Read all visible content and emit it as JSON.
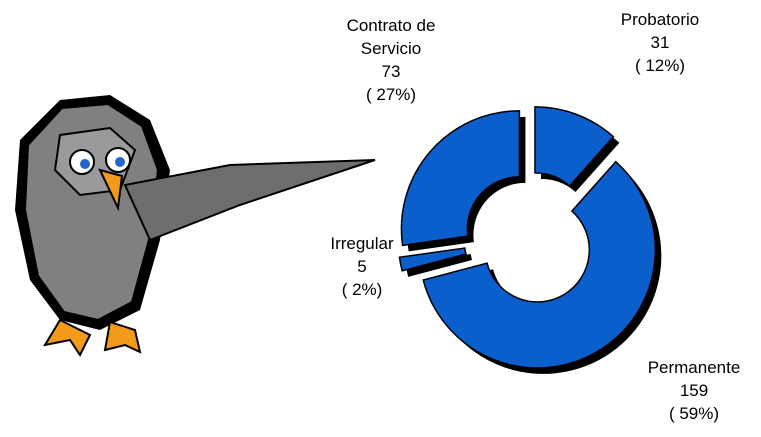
{
  "chart_data": {
    "type": "doughnut",
    "categories": [
      "Probatorio",
      "Permanente",
      "Irregular",
      "Contrato de Servicio"
    ],
    "values": [
      31,
      159,
      5,
      73
    ],
    "percents": [
      12,
      59,
      2,
      27
    ],
    "percent_labels": [
      "( 12%)",
      "( 59%)",
      "( 2%)",
      "( 27%)"
    ],
    "color": "#0b5fcc"
  }
}
